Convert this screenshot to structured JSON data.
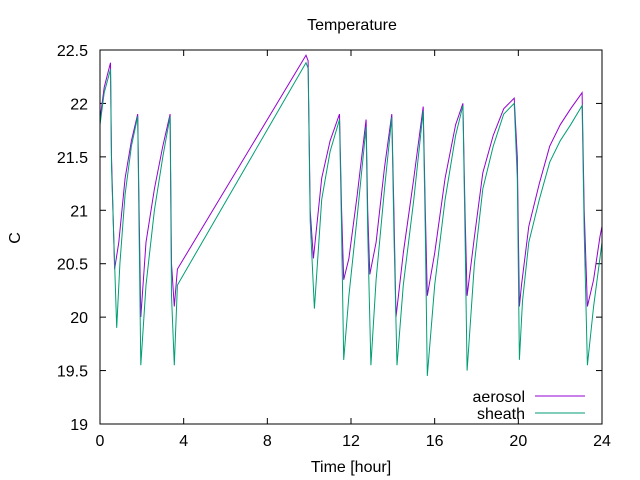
{
  "chart_data": {
    "type": "line",
    "title": "Temperature",
    "xlabel": "Time [hour]",
    "ylabel": "C",
    "xlim": [
      0,
      24
    ],
    "ylim": [
      19,
      22.5
    ],
    "x_ticks": [
      "0",
      "4",
      "8",
      "12",
      "16",
      "20",
      "24"
    ],
    "y_ticks": [
      "19",
      "19.5",
      "20",
      "20.5",
      "21",
      "21.5",
      "22",
      "22.5"
    ],
    "grid": false,
    "legend_position": "bottom-right",
    "series": [
      {
        "name": "aerosol",
        "color": "#9400d3",
        "x": [
          0,
          0.2,
          0.5,
          0.55,
          0.7,
          0.9,
          1.2,
          1.5,
          1.8,
          1.87,
          1.95,
          2.2,
          2.6,
          3.0,
          3.35,
          3.42,
          3.55,
          3.7,
          9.85,
          9.95,
          10.05,
          10.2,
          10.6,
          11.0,
          11.45,
          11.55,
          11.65,
          11.9,
          12.3,
          12.72,
          12.8,
          12.9,
          13.2,
          13.6,
          13.95,
          14.05,
          14.15,
          14.5,
          15.0,
          15.45,
          15.55,
          15.65,
          16.0,
          16.5,
          17.0,
          17.35,
          17.45,
          17.55,
          17.9,
          18.3,
          18.8,
          19.3,
          19.8,
          19.95,
          20.05,
          20.15,
          20.5,
          21.0,
          21.5,
          22.0,
          22.5,
          23.05,
          23.15,
          23.3,
          23.6,
          23.9,
          24.0
        ],
        "y": [
          21.85,
          22.15,
          22.38,
          21.5,
          20.45,
          20.7,
          21.3,
          21.65,
          21.9,
          21.0,
          20.0,
          20.7,
          21.2,
          21.6,
          21.9,
          20.5,
          20.1,
          20.45,
          22.45,
          22.4,
          21.0,
          20.55,
          21.3,
          21.65,
          21.9,
          21.0,
          20.35,
          20.55,
          21.15,
          21.85,
          21.0,
          20.4,
          20.7,
          21.4,
          21.9,
          21.0,
          20.0,
          20.6,
          21.3,
          21.97,
          21.0,
          20.2,
          20.6,
          21.3,
          21.8,
          22.0,
          21.0,
          20.2,
          20.75,
          21.35,
          21.7,
          21.95,
          22.05,
          21.5,
          20.1,
          20.3,
          20.85,
          21.25,
          21.6,
          21.8,
          21.95,
          22.1,
          21.0,
          20.1,
          20.35,
          20.75,
          20.85
        ]
      },
      {
        "name": "sheath",
        "color": "#009e73",
        "x": [
          0,
          0.2,
          0.5,
          0.55,
          0.8,
          0.95,
          1.2,
          1.5,
          1.8,
          1.87,
          1.95,
          2.2,
          2.6,
          3.0,
          3.35,
          3.42,
          3.55,
          3.7,
          9.85,
          9.95,
          10.05,
          10.25,
          10.6,
          11.0,
          11.45,
          11.55,
          11.65,
          11.9,
          12.3,
          12.72,
          12.8,
          12.95,
          13.2,
          13.6,
          13.95,
          14.05,
          14.2,
          14.5,
          15.0,
          15.45,
          15.55,
          15.65,
          16.0,
          16.5,
          17.0,
          17.35,
          17.45,
          17.55,
          17.9,
          18.3,
          18.8,
          19.3,
          19.8,
          19.95,
          20.05,
          20.2,
          20.5,
          21.0,
          21.5,
          22.0,
          22.5,
          23.05,
          23.15,
          23.3,
          23.6,
          23.9,
          24.0
        ],
        "y": [
          21.8,
          22.1,
          22.32,
          21.4,
          19.9,
          20.5,
          21.15,
          21.6,
          21.88,
          20.8,
          19.55,
          20.3,
          21.0,
          21.5,
          21.88,
          20.2,
          19.55,
          20.3,
          22.38,
          22.33,
          20.9,
          20.08,
          21.1,
          21.55,
          21.85,
          20.8,
          19.6,
          20.2,
          20.95,
          21.78,
          20.8,
          19.55,
          20.35,
          21.2,
          21.87,
          20.8,
          19.55,
          20.3,
          21.1,
          21.93,
          20.8,
          19.45,
          20.3,
          21.1,
          21.7,
          21.98,
          20.8,
          19.5,
          20.5,
          21.2,
          21.6,
          21.9,
          22.0,
          21.3,
          19.6,
          20.15,
          20.7,
          21.1,
          21.45,
          21.65,
          21.8,
          21.98,
          20.8,
          19.55,
          20.1,
          20.55,
          20.7
        ]
      }
    ]
  }
}
